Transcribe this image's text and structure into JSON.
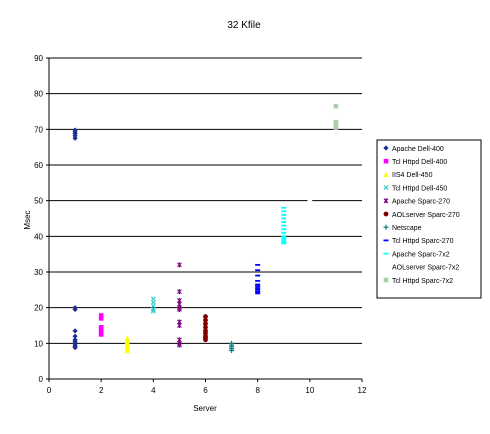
{
  "chart_data": {
    "type": "scatter",
    "title": "32 Kfile",
    "xlabel": "Server",
    "ylabel": "Msec",
    "xlim": [
      0,
      12
    ],
    "ylim": [
      0,
      90
    ],
    "x_ticks": [
      0,
      2,
      4,
      6,
      8,
      10,
      12
    ],
    "y_ticks": [
      0,
      10,
      20,
      30,
      40,
      50,
      60,
      70,
      80,
      90
    ],
    "grid": "horizontal",
    "legend_position": "right",
    "series": [
      {
        "name": "Apache Dell-400",
        "color": "#1f2d8f",
        "marker": "diamond",
        "x": 1,
        "y": [
          67.5,
          68.2,
          68.8,
          69.3,
          69.8,
          19.5,
          20,
          13.5,
          12,
          11,
          10.5,
          10,
          9.5,
          9,
          8.8
        ]
      },
      {
        "name": "Tcl Httpd Dell-400",
        "color": "#ff00ff",
        "marker": "square",
        "x": 2,
        "y": [
          17,
          17.8,
          14.5,
          13.8,
          13,
          12.5
        ]
      },
      {
        "name": "IIS4 Dell-450",
        "color": "#ffff00",
        "marker": "triangle",
        "x": 3,
        "y": [
          11.5,
          11,
          10.5,
          10,
          9.5,
          9,
          8.5,
          8
        ]
      },
      {
        "name": "Tcl Httpd Dell-450",
        "color": "#33cccc",
        "marker": "x",
        "x": 4,
        "y": [
          22.5,
          21.5,
          20.5,
          19.5,
          19
        ]
      },
      {
        "name": "Apache Sparc-270",
        "color": "#800080",
        "marker": "star",
        "x": 5,
        "y": [
          32,
          24.5,
          22,
          21,
          20,
          19.5,
          16,
          15,
          11,
          10,
          9.5
        ]
      },
      {
        "name": "AOLserver Sparc-270",
        "color": "#800000",
        "marker": "circle",
        "x": 6,
        "y": [
          17.5,
          16.5,
          15.5,
          14.5,
          13.5,
          12.8,
          12,
          11.5,
          11
        ]
      },
      {
        "name": "Netscape",
        "color": "#008080",
        "marker": "plus",
        "x": 7,
        "y": [
          10,
          9.5,
          9,
          8.5,
          8
        ]
      },
      {
        "name": "Tcl Httpd Sparc-270",
        "color": "#0000ff",
        "marker": "dash",
        "x": 8,
        "y": [
          32,
          30.5,
          29,
          27.5,
          26.5,
          26,
          25.5,
          25,
          24.5,
          24
        ]
      },
      {
        "name": "Apache Sparc-7x2",
        "color": "#00ffff",
        "marker": "dash",
        "x": 9,
        "y": [
          48,
          47,
          46,
          45,
          44,
          43,
          42,
          41,
          40,
          39.5,
          39,
          38.5,
          38
        ]
      },
      {
        "name": "AOLserver Sparc-7x2",
        "color": "#ffffff",
        "marker": "circle",
        "x": 10,
        "y": [
          50
        ]
      },
      {
        "name": "Tcl Httpd Sparc-7x2",
        "color": "#aacfaa",
        "marker": "square",
        "x": 11,
        "y": [
          76.5,
          72,
          71.2,
          70.5
        ]
      }
    ]
  }
}
